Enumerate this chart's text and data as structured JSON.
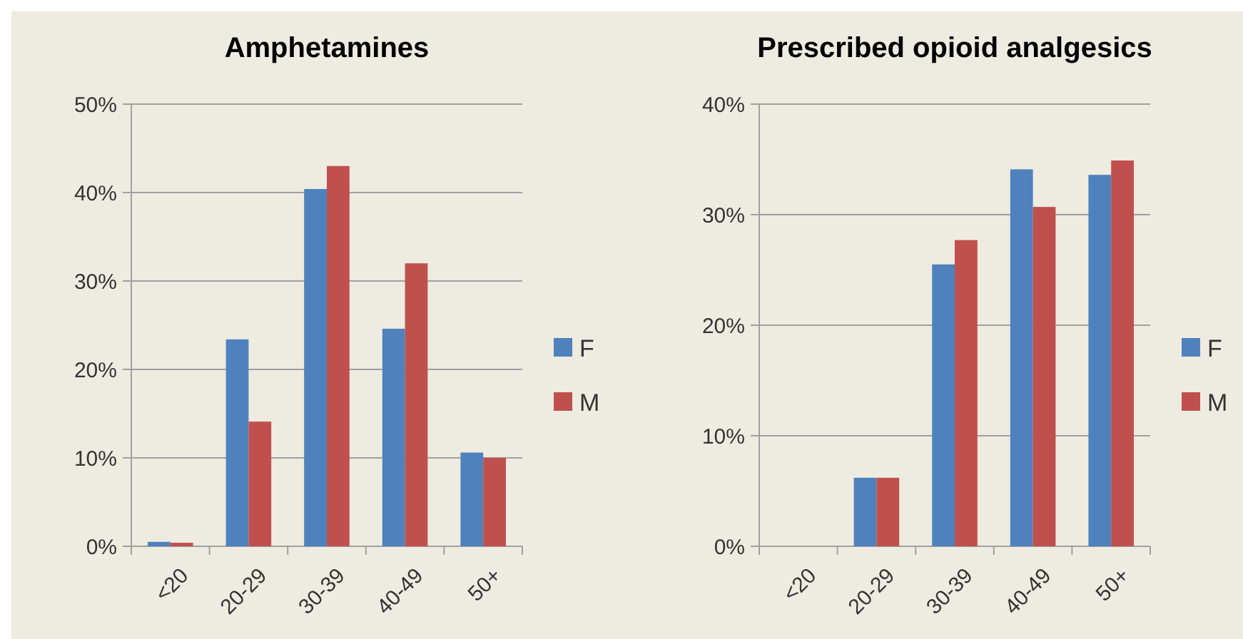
{
  "chart_data": [
    {
      "type": "bar",
      "title": "Amphetamines",
      "categories": [
        "<20",
        "20-29",
        "30-39",
        "40-49",
        "50+"
      ],
      "series": [
        {
          "name": "F",
          "color": "#4f81bd",
          "values": [
            0.5,
            23.4,
            40.4,
            24.6,
            10.6
          ]
        },
        {
          "name": "M",
          "color": "#c0504d",
          "values": [
            0.4,
            14.1,
            43.0,
            32.0,
            10.0
          ]
        }
      ],
      "ylim": [
        0,
        50
      ],
      "yticks": [
        {
          "value": 0,
          "label": "0%"
        },
        {
          "value": 10,
          "label": "10%"
        },
        {
          "value": 20,
          "label": "20%"
        },
        {
          "value": 30,
          "label": "30%"
        },
        {
          "value": 40,
          "label": "40%"
        },
        {
          "value": 50,
          "label": "50%"
        }
      ],
      "grid": "y",
      "legend": "right"
    },
    {
      "type": "bar",
      "title": "Prescribed opioid analgesics",
      "categories": [
        "<20",
        "20-29",
        "30-39",
        "40-49",
        "50+"
      ],
      "series": [
        {
          "name": "F",
          "color": "#4f81bd",
          "values": [
            0,
            6.2,
            25.5,
            34.1,
            33.6
          ]
        },
        {
          "name": "M",
          "color": "#c0504d",
          "values": [
            0,
            6.2,
            27.7,
            30.7,
            34.9
          ]
        }
      ],
      "ylim": [
        0,
        40
      ],
      "yticks": [
        {
          "value": 0,
          "label": "0%"
        },
        {
          "value": 10,
          "label": "10%"
        },
        {
          "value": 20,
          "label": "20%"
        },
        {
          "value": 30,
          "label": "30%"
        },
        {
          "value": 40,
          "label": "40%"
        }
      ],
      "grid": "y",
      "legend": "right"
    }
  ]
}
